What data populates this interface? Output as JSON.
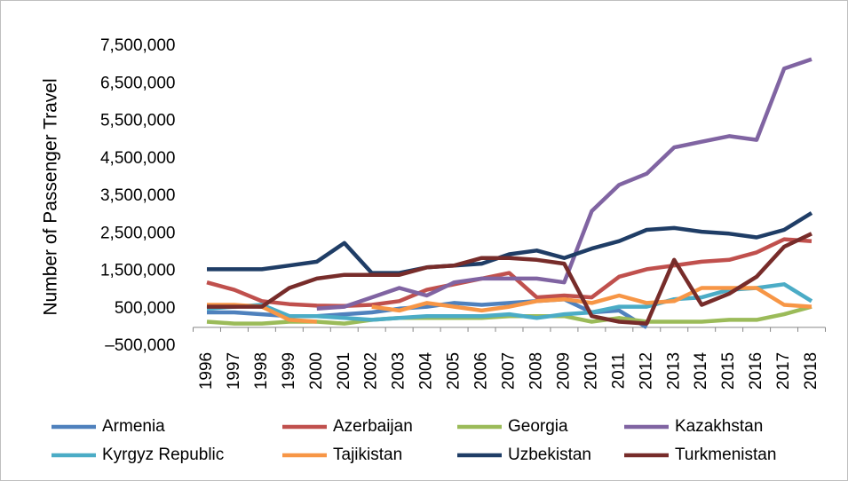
{
  "chart_data": {
    "type": "line",
    "y_label": "Number of Passenger Travel",
    "categories": [
      "1996",
      "1997",
      "1998",
      "1999",
      "2000",
      "2001",
      "2002",
      "2003",
      "2004",
      "2005",
      "2006",
      "2007",
      "2008",
      "2009",
      "2010",
      "2011",
      "2012",
      "2013",
      "2014",
      "2015",
      "2016",
      "2017",
      "2018"
    ],
    "ylim": [
      -500000,
      7500000
    ],
    "yticks": [
      {
        "value": -500000,
        "label": "–500,000"
      },
      {
        "value": 500000,
        "label": "500,000"
      },
      {
        "value": 1500000,
        "label": "1,500,000"
      },
      {
        "value": 2500000,
        "label": "2,500,000"
      },
      {
        "value": 3500000,
        "label": "3,500,000"
      },
      {
        "value": 4500000,
        "label": "4,500,000"
      },
      {
        "value": 5500000,
        "label": "5,500,000"
      },
      {
        "value": 6500000,
        "label": "6,500,000"
      },
      {
        "value": 7500000,
        "label": "7,500,000"
      }
    ],
    "grid": false,
    "legend": "bottom",
    "series": [
      {
        "name": "Armenia",
        "color": "#4f81bd",
        "values": [
          400000,
          400000,
          350000,
          300000,
          300000,
          350000,
          400000,
          500000,
          550000,
          650000,
          600000,
          650000,
          700000,
          750000,
          400000,
          450000,
          0,
          null,
          null,
          null,
          null,
          null,
          null
        ]
      },
      {
        "name": "Azerbaijan",
        "color": "#c0504d",
        "values": [
          1200000,
          1000000,
          700000,
          620000,
          580000,
          570000,
          600000,
          700000,
          1000000,
          1150000,
          1300000,
          1450000,
          800000,
          850000,
          800000,
          1350000,
          1550000,
          1650000,
          1750000,
          1800000,
          2000000,
          2350000,
          2300000
        ]
      },
      {
        "name": "Georgia",
        "color": "#9bbb59",
        "values": [
          150000,
          100000,
          100000,
          150000,
          150000,
          100000,
          200000,
          250000,
          250000,
          250000,
          250000,
          300000,
          300000,
          300000,
          150000,
          250000,
          150000,
          150000,
          150000,
          200000,
          200000,
          350000,
          550000
        ]
      },
      {
        "name": "Kazakhstan",
        "color": "#8064a2",
        "values": [
          null,
          null,
          null,
          null,
          500000,
          550000,
          800000,
          1050000,
          850000,
          1200000,
          1300000,
          1300000,
          1300000,
          1200000,
          3100000,
          3800000,
          4100000,
          4800000,
          4950000,
          5100000,
          5000000,
          6900000,
          7150000
        ]
      },
      {
        "name": "Kyrgyz Republic",
        "color": "#4bacc6",
        "values": [
          500000,
          550000,
          600000,
          300000,
          300000,
          250000,
          200000,
          250000,
          300000,
          300000,
          300000,
          350000,
          250000,
          350000,
          400000,
          550000,
          550000,
          750000,
          800000,
          1000000,
          1050000,
          1150000,
          700000
        ]
      },
      {
        "name": "Tajikistan",
        "color": "#f79646",
        "values": [
          600000,
          600000,
          550000,
          200000,
          150000,
          null,
          550000,
          450000,
          650000,
          550000,
          450000,
          550000,
          700000,
          750000,
          650000,
          850000,
          650000,
          700000,
          1050000,
          1050000,
          1050000,
          600000,
          550000
        ]
      },
      {
        "name": "Uzbekistan",
        "color": "#1f3d66",
        "values": [
          1550000,
          1550000,
          1550000,
          1650000,
          1750000,
          2250000,
          1450000,
          1450000,
          1600000,
          1650000,
          1700000,
          1950000,
          2050000,
          1850000,
          2100000,
          2300000,
          2600000,
          2650000,
          2550000,
          2500000,
          2400000,
          2600000,
          3050000
        ]
      },
      {
        "name": "Turkmenistan",
        "color": "#772c2a",
        "values": [
          550000,
          550000,
          550000,
          1050000,
          1300000,
          1400000,
          1400000,
          1400000,
          1600000,
          1650000,
          1850000,
          1850000,
          1800000,
          1700000,
          300000,
          150000,
          100000,
          1800000,
          600000,
          900000,
          1350000,
          2150000,
          2500000
        ]
      }
    ]
  }
}
